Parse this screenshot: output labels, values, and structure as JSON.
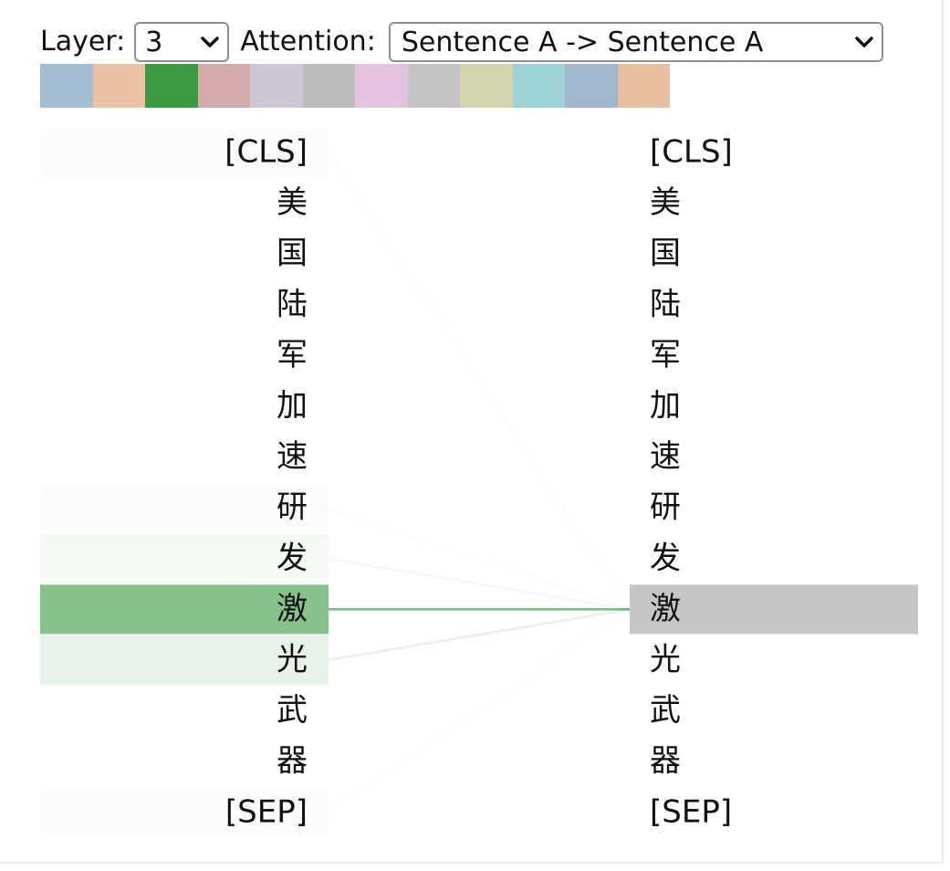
{
  "controls": {
    "layer_label": "Layer:",
    "layer_value": "3",
    "attention_label": "Attention:",
    "attention_value": "Sentence A -> Sentence A"
  },
  "heads": [
    {
      "color": "#a3bdd1"
    },
    {
      "color": "#ecc0a2"
    },
    {
      "color": "#3c9a44",
      "selected": true
    },
    {
      "color": "#d5aaaa"
    },
    {
      "color": "#cdc6d6"
    },
    {
      "color": "#bcbcbc"
    },
    {
      "color": "#e3c2de"
    },
    {
      "color": "#c4c4c6"
    },
    {
      "color": "#d4d4ac"
    },
    {
      "color": "#9ed3d6"
    },
    {
      "color": "#a3b7cc"
    },
    {
      "color": "#eabf9f"
    }
  ],
  "tokens_left": [
    "[CLS]",
    "美",
    "国",
    "陆",
    "军",
    "加",
    "速",
    "研",
    "发",
    "激",
    "光",
    "武",
    "器",
    "[SEP]"
  ],
  "tokens_right": [
    "[CLS]",
    "美",
    "国",
    "陆",
    "军",
    "加",
    "速",
    "研",
    "发",
    "激",
    "光",
    "武",
    "器",
    "[SEP]"
  ],
  "attention": {
    "selected_target_index": 9,
    "highlight_color": "#3c9a44",
    "target_highlight_color": "#c6c6c6",
    "weights_to_selected": [
      0.02,
      0.0,
      0.0,
      0.0,
      0.0,
      0.0,
      0.0,
      0.03,
      0.05,
      0.62,
      0.12,
      0.0,
      0.0,
      0.02
    ]
  }
}
